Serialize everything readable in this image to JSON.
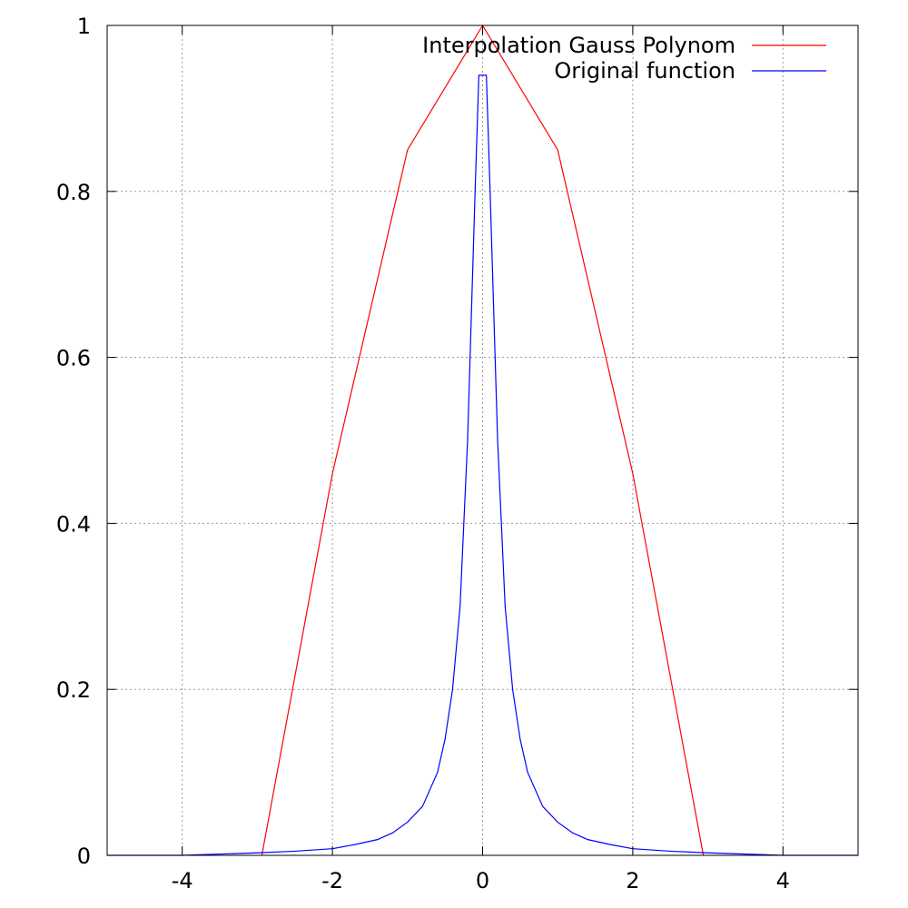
{
  "chart_data": {
    "type": "line",
    "title": "",
    "xlabel": "",
    "ylabel": "",
    "xlim": [
      -5,
      5
    ],
    "ylim": [
      0,
      1
    ],
    "grid": true,
    "legend_position": "top-right",
    "x_ticks": [
      "-4",
      "-2",
      "0",
      "2",
      "4"
    ],
    "y_ticks": [
      "0",
      "0.2",
      "0.4",
      "0.6",
      "0.8",
      "1"
    ],
    "series": [
      {
        "name": "Interpolation Gauss Polynom",
        "color": "#ff0000",
        "x": [
          -2.94,
          -2.0,
          -1.0,
          0.0,
          1.0,
          2.0,
          2.94
        ],
        "y": [
          0.0,
          0.46,
          0.85,
          1.0,
          0.85,
          0.46,
          0.0
        ]
      },
      {
        "name": "Original function",
        "color": "#0000ff",
        "x": [
          -5.0,
          -4.0,
          -3.0,
          -2.5,
          -2.0,
          -1.7,
          -1.4,
          -1.2,
          -1.0,
          -0.8,
          -0.6,
          -0.5,
          -0.4,
          -0.3,
          -0.2,
          -0.1,
          -0.05,
          0.05,
          0.1,
          0.2,
          0.3,
          0.4,
          0.5,
          0.6,
          0.8,
          1.0,
          1.2,
          1.4,
          1.7,
          2.0,
          2.5,
          3.0,
          4.0,
          5.0
        ],
        "y": [
          0.0,
          0.0,
          0.003,
          0.005,
          0.008,
          0.013,
          0.019,
          0.027,
          0.04,
          0.059,
          0.1,
          0.14,
          0.2,
          0.3,
          0.5,
          0.8,
          0.94,
          0.94,
          0.8,
          0.5,
          0.3,
          0.2,
          0.14,
          0.1,
          0.059,
          0.04,
          0.027,
          0.019,
          0.013,
          0.008,
          0.005,
          0.003,
          0.0,
          0.0
        ]
      }
    ]
  }
}
